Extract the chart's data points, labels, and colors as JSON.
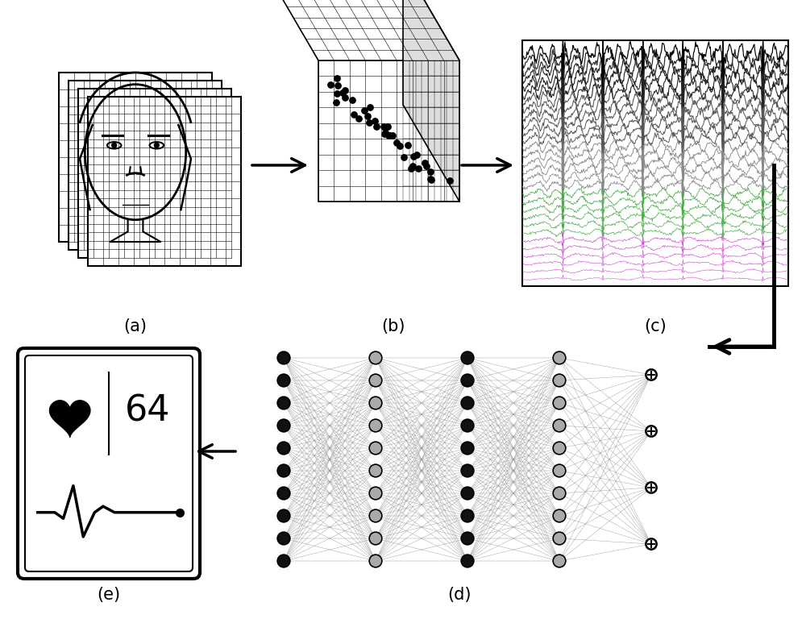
{
  "bg_color": "#ffffff",
  "label_fontsize": 15,
  "node_colors_alt": [
    "#000000",
    "#999999"
  ],
  "heart_rate_text": "64",
  "n_frames": 4,
  "n_grid": 10,
  "n_channels": 30,
  "nn_layers": [
    10,
    10,
    10,
    10,
    4
  ],
  "waveform_colors": [
    "#cc44cc",
    "#44aa44",
    "#888888",
    "#555555",
    "#222222",
    "#000000"
  ]
}
